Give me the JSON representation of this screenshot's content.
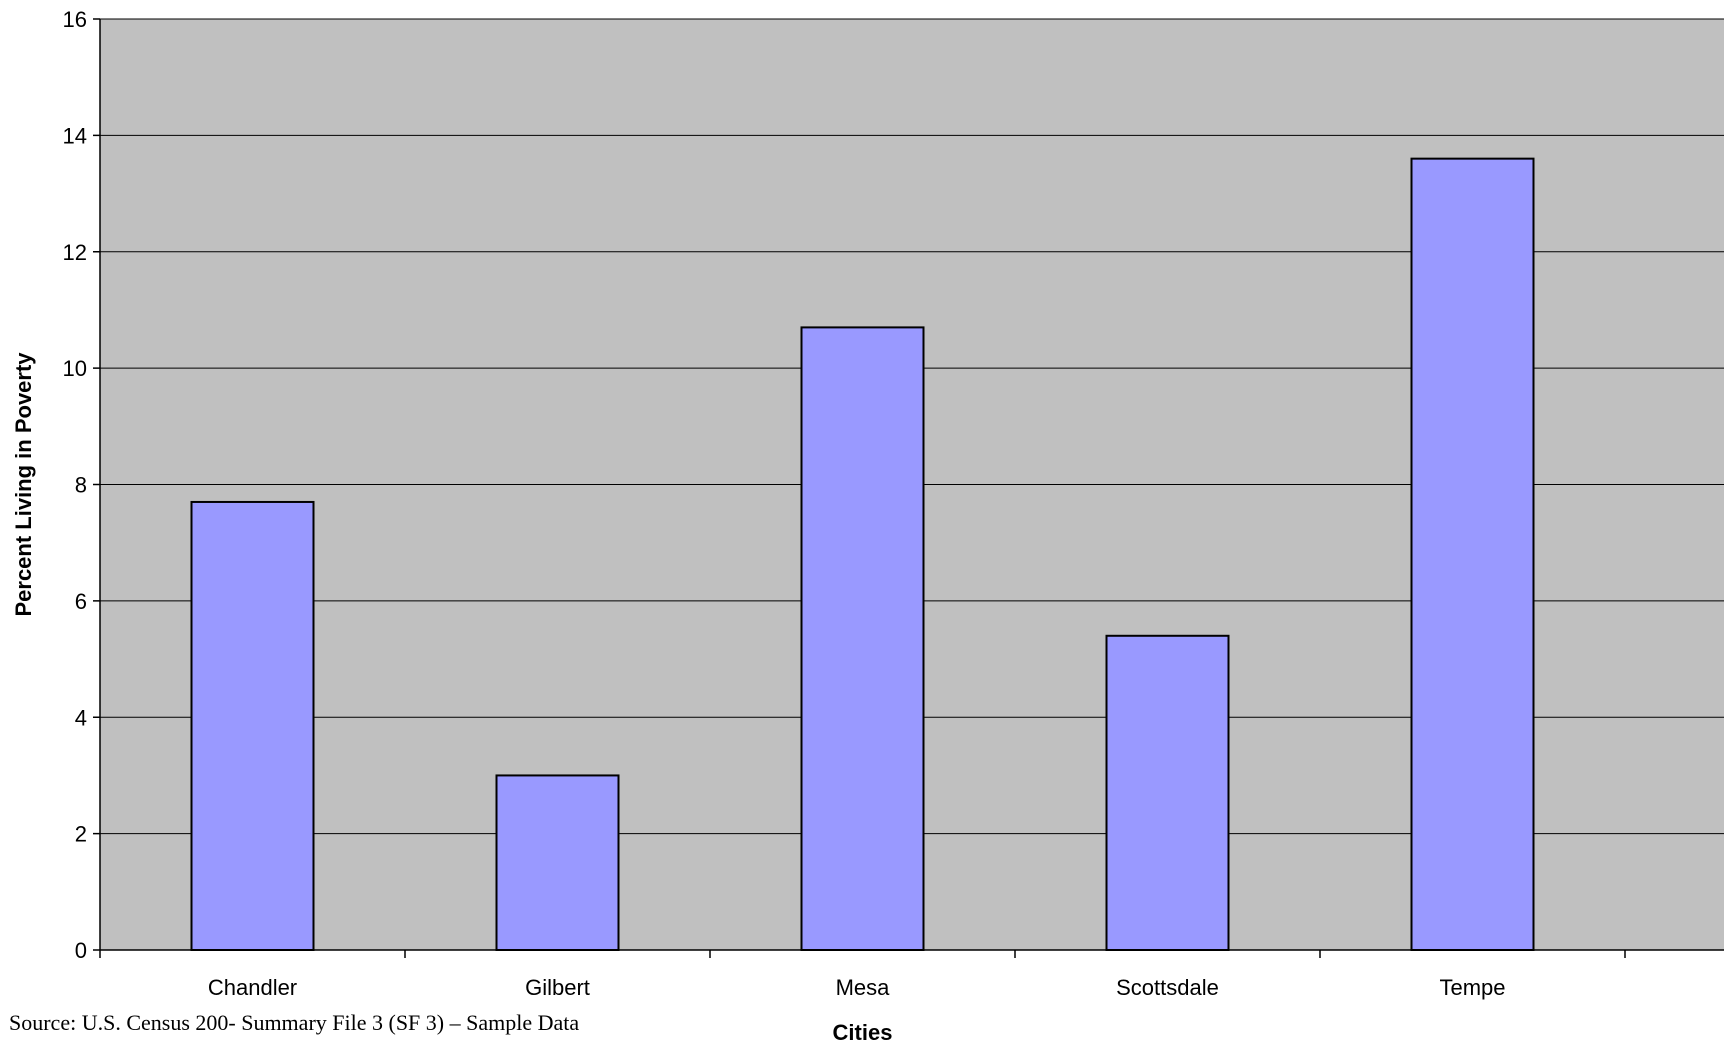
{
  "chart_data": {
    "type": "bar",
    "title": "",
    "categories": [
      "Chandler",
      "Gilbert",
      "Mesa",
      "Scottsdale",
      "Tempe"
    ],
    "values": [
      7.7,
      3.0,
      10.7,
      5.4,
      13.6
    ],
    "xlabel": "Cities",
    "ylabel": "Percent Living in Poverty",
    "ylim": [
      0,
      16
    ],
    "yticks": [
      0,
      2,
      4,
      6,
      8,
      10,
      12,
      14,
      16
    ],
    "grid": true,
    "legend": "none",
    "colors": {
      "bar_fill": "#9999ff",
      "bar_stroke": "#000000",
      "plot_background": "#c0c0c0",
      "gridline": "#000000"
    }
  },
  "source_note": "Source:  U.S. Census 200- Summary File 3 (SF 3) – Sample Data"
}
